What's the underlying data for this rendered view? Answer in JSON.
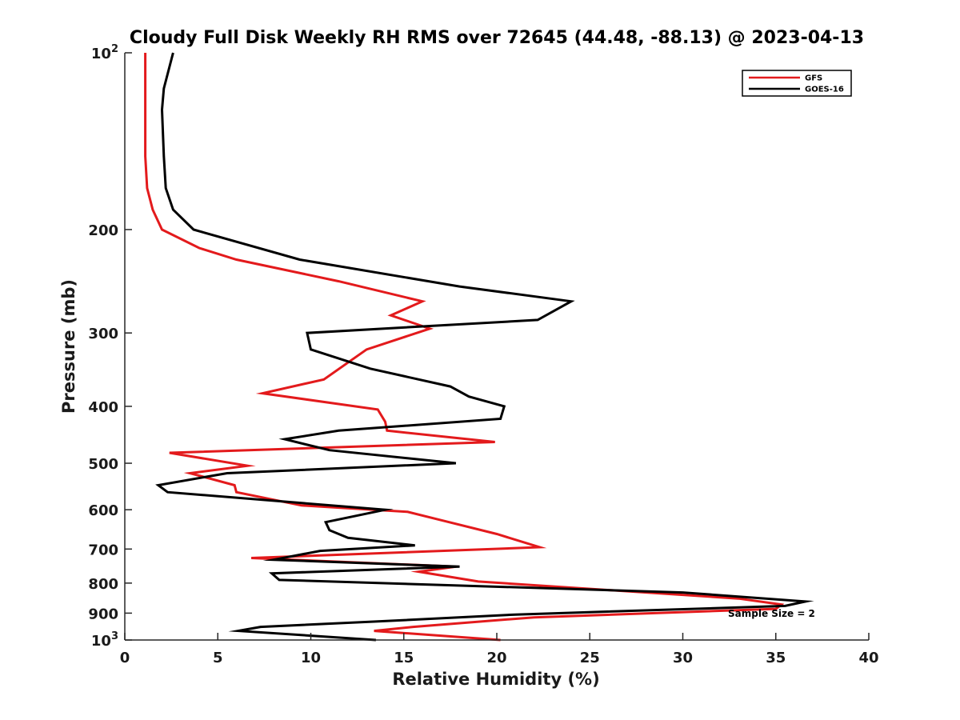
{
  "chart_data": {
    "type": "line",
    "title": "Cloudy Full Disk Weekly RH RMS over 72645 (44.48, -88.13) @ 2023-04-13",
    "xlabel": "Relative Humidity (%)",
    "ylabel": "Pressure (mb)",
    "xlim": [
      0,
      40
    ],
    "ylim": [
      100,
      1000
    ],
    "y_scale": "log",
    "y_reversed": true,
    "grid": false,
    "legend_position": "top-right",
    "x_ticks": [
      {
        "value": 0,
        "label": "0"
      },
      {
        "value": 5,
        "label": "5"
      },
      {
        "value": 10,
        "label": "10"
      },
      {
        "value": 15,
        "label": "15"
      },
      {
        "value": 20,
        "label": "20"
      },
      {
        "value": 25,
        "label": "25"
      },
      {
        "value": 30,
        "label": "30"
      },
      {
        "value": 35,
        "label": "35"
      },
      {
        "value": 40,
        "label": "40"
      }
    ],
    "y_ticks": [
      {
        "value": 100,
        "base": "10",
        "exp": "2"
      },
      {
        "value": 200,
        "base": "200",
        "exp": ""
      },
      {
        "value": 300,
        "base": "300",
        "exp": ""
      },
      {
        "value": 400,
        "base": "400",
        "exp": ""
      },
      {
        "value": 500,
        "base": "500",
        "exp": ""
      },
      {
        "value": 600,
        "base": "600",
        "exp": ""
      },
      {
        "value": 700,
        "base": "700",
        "exp": ""
      },
      {
        "value": 800,
        "base": "800",
        "exp": ""
      },
      {
        "value": 900,
        "base": "900",
        "exp": ""
      },
      {
        "value": 1000,
        "base": "10",
        "exp": "3"
      }
    ],
    "annotation": "Sample Size = 2",
    "series": [
      {
        "name": "GFS",
        "color": "#e31a1c",
        "points": [
          [
            1.1,
            100
          ],
          [
            1.1,
            125
          ],
          [
            1.1,
            150
          ],
          [
            1.2,
            170
          ],
          [
            1.5,
            185
          ],
          [
            2.0,
            200
          ],
          [
            4.0,
            215
          ],
          [
            6.0,
            225
          ],
          [
            11.5,
            245
          ],
          [
            16.0,
            265
          ],
          [
            14.3,
            280
          ],
          [
            16.4,
            295
          ],
          [
            13.0,
            320
          ],
          [
            10.7,
            360
          ],
          [
            7.4,
            380
          ],
          [
            13.6,
            405
          ],
          [
            14.0,
            425
          ],
          [
            14.1,
            440
          ],
          [
            19.9,
            460
          ],
          [
            2.4,
            480
          ],
          [
            6.6,
            505
          ],
          [
            3.5,
            520
          ],
          [
            5.9,
            545
          ],
          [
            6.0,
            560
          ],
          [
            9.5,
            590
          ],
          [
            15.2,
            605
          ],
          [
            17.0,
            625
          ],
          [
            20.0,
            660
          ],
          [
            22.3,
            695
          ],
          [
            6.8,
            725
          ],
          [
            17.8,
            750
          ],
          [
            15.8,
            765
          ],
          [
            19.0,
            795
          ],
          [
            33.0,
            850
          ],
          [
            35.3,
            870
          ],
          [
            35.0,
            885
          ],
          [
            22.0,
            915
          ],
          [
            15.5,
            950
          ],
          [
            13.4,
            965
          ],
          [
            20.2,
            1000
          ]
        ]
      },
      {
        "name": "GOES-16",
        "color": "#000000",
        "points": [
          [
            2.6,
            100
          ],
          [
            2.1,
            115
          ],
          [
            2.0,
            125
          ],
          [
            2.1,
            150
          ],
          [
            2.2,
            170
          ],
          [
            2.6,
            185
          ],
          [
            3.7,
            200
          ],
          [
            9.4,
            225
          ],
          [
            18.0,
            250
          ],
          [
            24.0,
            265
          ],
          [
            22.2,
            285
          ],
          [
            9.8,
            300
          ],
          [
            10.0,
            320
          ],
          [
            13.2,
            345
          ],
          [
            17.5,
            370
          ],
          [
            18.5,
            385
          ],
          [
            20.4,
            400
          ],
          [
            20.2,
            420
          ],
          [
            11.5,
            440
          ],
          [
            8.6,
            455
          ],
          [
            11.0,
            475
          ],
          [
            17.8,
            500
          ],
          [
            5.5,
            520
          ],
          [
            1.8,
            545
          ],
          [
            2.3,
            560
          ],
          [
            14.0,
            600
          ],
          [
            10.8,
            630
          ],
          [
            11.0,
            650
          ],
          [
            12.0,
            670
          ],
          [
            15.6,
            690
          ],
          [
            10.5,
            705
          ],
          [
            8.0,
            730
          ],
          [
            18.0,
            750
          ],
          [
            7.9,
            770
          ],
          [
            8.3,
            790
          ],
          [
            30.0,
            830
          ],
          [
            36.6,
            860
          ],
          [
            35.5,
            875
          ],
          [
            21.0,
            905
          ],
          [
            13.5,
            930
          ],
          [
            7.3,
            950
          ],
          [
            6.1,
            965
          ],
          [
            13.5,
            1000
          ]
        ]
      }
    ]
  }
}
